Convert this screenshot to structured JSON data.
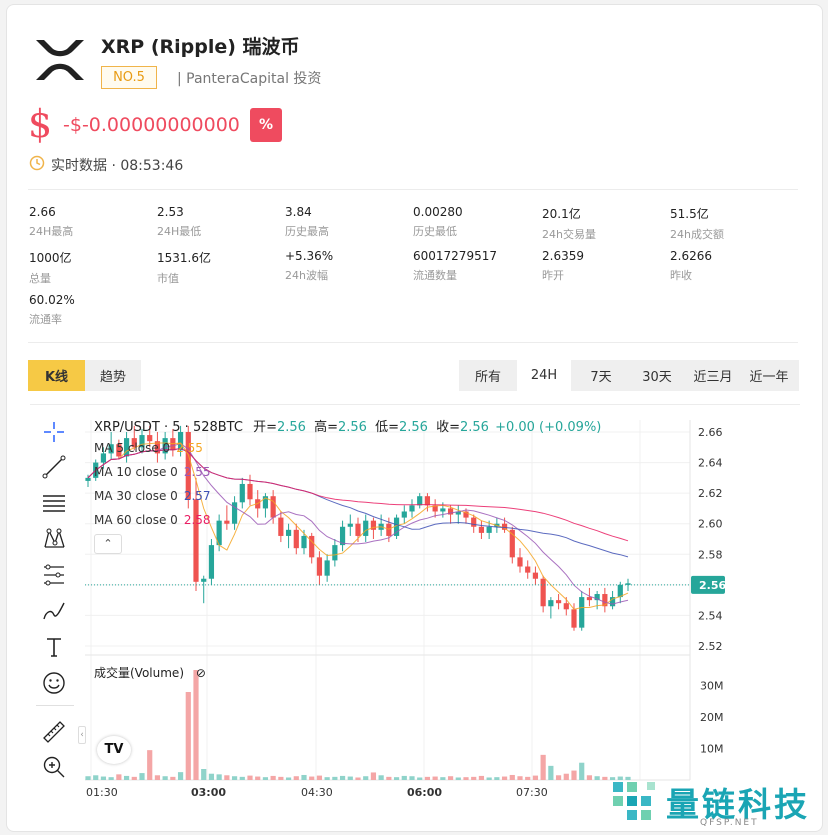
{
  "coin": {
    "name": "XRP (Ripple) 瑞波币",
    "rank": "NO.5",
    "investor": "| PanteraCapital 投资",
    "currency_symbol": "$",
    "price": "-$-0.00000000000",
    "change_badge": "%",
    "realtime": "实时数据 · 08:53:46"
  },
  "stats": [
    {
      "value": "2.66",
      "label": "24H最高"
    },
    {
      "value": "2.53",
      "label": "24H最低"
    },
    {
      "value": "3.84",
      "label": "历史最高"
    },
    {
      "value": "0.00280",
      "label": "历史最低"
    },
    {
      "value": "20.1亿",
      "label": "24h交易量"
    },
    {
      "value": "51.5亿",
      "label": "24h成交额"
    },
    {
      "value": "1000亿",
      "label": "总量"
    },
    {
      "value": "1531.6亿",
      "label": "市值"
    },
    {
      "value": "+5.36%",
      "label": "24h波幅"
    },
    {
      "value": "60017279517",
      "label": "流通数量"
    },
    {
      "value": "2.6359",
      "label": "昨开"
    },
    {
      "value": "2.6266",
      "label": "昨收"
    },
    {
      "value": "60.02%",
      "label": "流通率"
    }
  ],
  "view_tabs": [
    {
      "label": "K线",
      "active": true
    },
    {
      "label": "趋势",
      "active": false
    }
  ],
  "range_tabs": [
    {
      "label": "所有",
      "active": false
    },
    {
      "label": "24H",
      "active": true
    },
    {
      "label": "7天",
      "active": false
    },
    {
      "label": "30天",
      "active": false
    },
    {
      "label": "近三月",
      "active": false
    },
    {
      "label": "近一年",
      "active": false
    }
  ],
  "tools": [
    "crosshair-icon",
    "trend-line-icon",
    "fib-lines-icon",
    "pattern-icon",
    "forecast-icon",
    "brush-icon",
    "text-icon",
    "emoji-icon",
    "ruler-icon",
    "zoom-in-icon"
  ],
  "chart_data": {
    "type": "candlestick",
    "symbol_line": "XRP/USDT · 5 · 528BTC",
    "ohlc": {
      "open_label": "开=",
      "open": "2.56",
      "high_label": "高=",
      "high": "2.56",
      "low_label": "低=",
      "low": "2.56",
      "close_label": "收=",
      "close": "2.56",
      "change": "+0.00 (+0.09%)"
    },
    "ma_legend": [
      {
        "label": "MA 5 close 0",
        "value": "2.55",
        "color": "#f5a623"
      },
      {
        "label": "MA 10 close 0",
        "value": "2.55",
        "color": "#9b59b6"
      },
      {
        "label": "MA 30 close 0",
        "value": "2.57",
        "color": "#3f51b5"
      },
      {
        "label": "MA 60 close 0",
        "value": "2.58",
        "color": "#e91e63"
      }
    ],
    "y_ticks": [
      "2.66",
      "2.64",
      "2.62",
      "2.60",
      "2.58",
      "2.56",
      "2.54",
      "2.52"
    ],
    "y_range": [
      2.52,
      2.66
    ],
    "last_price": "2.56",
    "x_ticks": [
      "01:30",
      "03:00",
      "04:30",
      "06:00",
      "07:30"
    ],
    "volume_title": "成交量(Volume)",
    "volume_ticks": [
      "30M",
      "20M",
      "10M"
    ],
    "candles": [
      [
        2.628,
        2.632,
        2.624,
        2.63
      ],
      [
        2.63,
        2.642,
        2.628,
        2.64
      ],
      [
        2.64,
        2.65,
        2.636,
        2.646
      ],
      [
        2.646,
        2.66,
        2.642,
        2.652
      ],
      [
        2.652,
        2.655,
        2.642,
        2.644
      ],
      [
        2.644,
        2.66,
        2.64,
        2.656
      ],
      [
        2.656,
        2.664,
        2.648,
        2.65
      ],
      [
        2.65,
        2.662,
        2.646,
        2.658
      ],
      [
        2.658,
        2.664,
        2.65,
        2.654
      ],
      [
        2.654,
        2.66,
        2.64,
        2.646
      ],
      [
        2.646,
        2.66,
        2.642,
        2.656
      ],
      [
        2.656,
        2.662,
        2.644,
        2.648
      ],
      [
        2.648,
        2.664,
        2.644,
        2.66
      ],
      [
        2.66,
        2.664,
        2.61,
        2.616
      ],
      [
        2.616,
        2.63,
        2.556,
        2.562
      ],
      [
        2.562,
        2.566,
        2.548,
        2.564
      ],
      [
        2.564,
        2.59,
        2.56,
        2.586
      ],
      [
        2.586,
        2.606,
        2.582,
        2.602
      ],
      [
        2.602,
        2.612,
        2.596,
        2.6
      ],
      [
        2.6,
        2.618,
        2.596,
        2.614
      ],
      [
        2.614,
        2.63,
        2.61,
        2.626
      ],
      [
        2.626,
        2.632,
        2.612,
        2.616
      ],
      [
        2.616,
        2.622,
        2.604,
        2.61
      ],
      [
        2.61,
        2.62,
        2.604,
        2.618
      ],
      [
        2.618,
        2.622,
        2.6,
        2.604
      ],
      [
        2.604,
        2.608,
        2.588,
        2.592
      ],
      [
        2.592,
        2.6,
        2.584,
        2.596
      ],
      [
        2.596,
        2.6,
        2.58,
        2.584
      ],
      [
        2.584,
        2.596,
        2.58,
        2.592
      ],
      [
        2.592,
        2.594,
        2.574,
        2.578
      ],
      [
        2.578,
        2.582,
        2.56,
        2.566
      ],
      [
        2.566,
        2.58,
        2.562,
        2.576
      ],
      [
        2.576,
        2.59,
        2.572,
        2.586
      ],
      [
        2.586,
        2.602,
        2.582,
        2.598
      ],
      [
        2.598,
        2.606,
        2.592,
        2.6
      ],
      [
        2.6,
        2.604,
        2.588,
        2.592
      ],
      [
        2.592,
        2.606,
        2.588,
        2.602
      ],
      [
        2.602,
        2.604,
        2.59,
        2.596
      ],
      [
        2.596,
        2.606,
        2.592,
        2.6
      ],
      [
        2.6,
        2.604,
        2.588,
        2.592
      ],
      [
        2.592,
        2.606,
        2.59,
        2.604
      ],
      [
        2.604,
        2.612,
        2.6,
        2.608
      ],
      [
        2.608,
        2.616,
        2.604,
        2.612
      ],
      [
        2.612,
        2.62,
        2.61,
        2.618
      ],
      [
        2.618,
        2.62,
        2.608,
        2.612
      ],
      [
        2.612,
        2.616,
        2.604,
        2.608
      ],
      [
        2.608,
        2.614,
        2.604,
        2.61
      ],
      [
        2.61,
        2.612,
        2.6,
        2.606
      ],
      [
        2.606,
        2.612,
        2.6,
        2.608
      ],
      [
        2.608,
        2.61,
        2.6,
        2.604
      ],
      [
        2.604,
        2.606,
        2.594,
        2.598
      ],
      [
        2.598,
        2.602,
        2.59,
        2.594
      ],
      [
        2.594,
        2.602,
        2.59,
        2.598
      ],
      [
        2.598,
        2.604,
        2.594,
        2.6
      ],
      [
        2.6,
        2.604,
        2.594,
        2.596
      ],
      [
        2.596,
        2.598,
        2.574,
        2.578
      ],
      [
        2.578,
        2.584,
        2.568,
        2.572
      ],
      [
        2.572,
        2.576,
        2.564,
        2.568
      ],
      [
        2.568,
        2.572,
        2.56,
        2.564
      ],
      [
        2.564,
        2.566,
        2.542,
        2.546
      ],
      [
        2.546,
        2.552,
        2.538,
        2.55
      ],
      [
        2.55,
        2.554,
        2.544,
        2.548
      ],
      [
        2.548,
        2.552,
        2.54,
        2.544
      ],
      [
        2.544,
        2.548,
        2.53,
        2.532
      ],
      [
        2.532,
        2.556,
        2.53,
        2.552
      ],
      [
        2.552,
        2.558,
        2.546,
        2.55
      ],
      [
        2.55,
        2.556,
        2.544,
        2.554
      ],
      [
        2.554,
        2.558,
        2.542,
        2.546
      ],
      [
        2.546,
        2.556,
        2.544,
        2.552
      ],
      [
        2.552,
        2.562,
        2.548,
        2.56
      ],
      [
        2.56,
        2.564,
        2.556,
        2.561
      ]
    ],
    "volumes": [
      1.2,
      1.5,
      1.1,
      0.9,
      1.8,
      1.3,
      1.0,
      2.2,
      9.5,
      1.5,
      1.2,
      1.0,
      2.5,
      28.0,
      35.0,
      3.5,
      2.0,
      1.8,
      1.5,
      1.2,
      1.0,
      1.4,
      1.1,
      0.9,
      1.3,
      1.0,
      0.8,
      1.2,
      1.6,
      1.1,
      1.4,
      0.9,
      1.0,
      1.3,
      1.1,
      0.8,
      1.2,
      2.4,
      1.5,
      1.0,
      0.9,
      1.3,
      1.2,
      0.8,
      1.0,
      1.1,
      0.9,
      1.2,
      0.8,
      0.9,
      1.0,
      1.3,
      0.8,
      0.9,
      1.1,
      1.6,
      1.2,
      1.0,
      1.4,
      8.0,
      4.5,
      1.5,
      2.0,
      3.0,
      5.5,
      1.5,
      1.2,
      1.0,
      0.9,
      1.1,
      1.0
    ]
  },
  "watermark": {
    "text": "量链科技",
    "url": "QFSP.NET"
  }
}
